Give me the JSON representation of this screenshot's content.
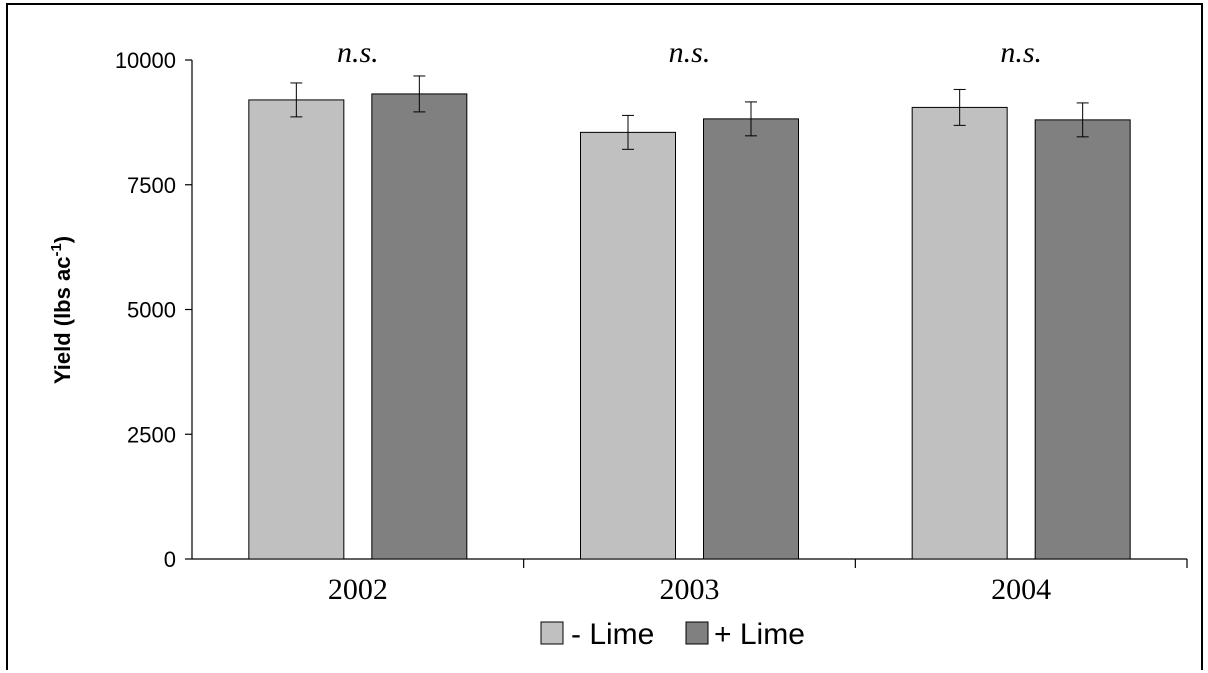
{
  "chart_data": {
    "type": "bar",
    "categories": [
      "2002",
      "2003",
      "2004"
    ],
    "series": [
      {
        "name": "- Lime",
        "values": [
          9200,
          8550,
          9050
        ],
        "errors": [
          340,
          340,
          360
        ],
        "color": "#c0c0c0"
      },
      {
        "name": "+ Lime",
        "values": [
          9320,
          8820,
          8800
        ],
        "errors": [
          360,
          340,
          340
        ],
        "color": "#808080"
      }
    ],
    "annotations": [
      "n.s.",
      "n.s.",
      "n.s."
    ],
    "ylabel_main": "Yield (lbs ac",
    "ylabel_sup": "-1",
    "ylabel_close": ")",
    "ylim": [
      0,
      10000
    ],
    "yticks": [
      "0",
      "2500",
      "5000",
      "7500",
      "10000"
    ],
    "grid": false,
    "legend_position": "bottom-center"
  }
}
